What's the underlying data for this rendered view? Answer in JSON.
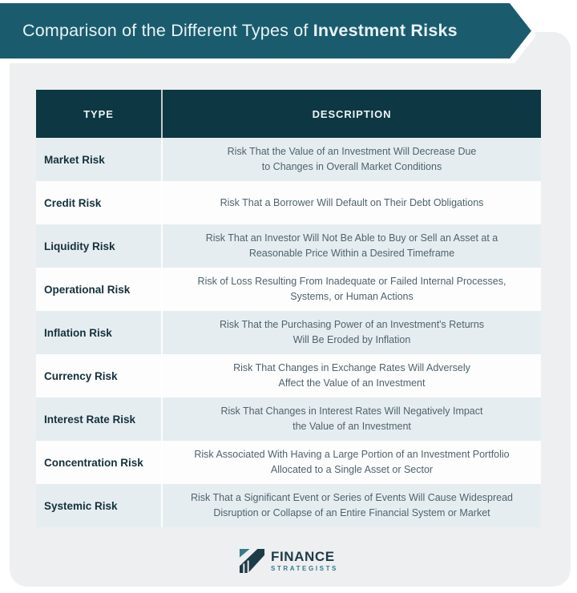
{
  "banner": {
    "title_prefix": "Comparison of the Different Types of ",
    "title_emphasis": "Investment Risks"
  },
  "chart_data": {
    "type": "table",
    "title": "Comparison of the Different Types of Investment Risks",
    "columns": [
      "TYPE",
      "DESCRIPTION"
    ],
    "rows": [
      {
        "type": "Market Risk",
        "description": "Risk That the Value of an Investment Will Decrease Due\nto Changes in Overall Market Conditions"
      },
      {
        "type": "Credit Risk",
        "description": "Risk That a Borrower Will Default on Their Debt Obligations"
      },
      {
        "type": "Liquidity Risk",
        "description": "Risk That an Investor Will Not Be Able to Buy or Sell an Asset at a\nReasonable Price Within a Desired Timeframe"
      },
      {
        "type": "Operational Risk",
        "description": "Risk of Loss Resulting From Inadequate or Failed Internal Processes,\nSystems, or Human Actions"
      },
      {
        "type": "Inflation Risk",
        "description": "Risk That the Purchasing Power of an Investment's Returns\nWill Be Eroded by Inflation"
      },
      {
        "type": "Currency Risk",
        "description": "Risk That Changes in Exchange Rates Will Adversely\nAffect the Value of an Investment"
      },
      {
        "type": "Interest Rate Risk",
        "description": "Risk That Changes in Interest Rates Will Negatively Impact\nthe Value of an Investment"
      },
      {
        "type": "Concentration Risk",
        "description": "Risk Associated With Having a Large Portion of an Investment Portfolio\nAllocated to a Single Asset or Sector"
      },
      {
        "type": "Systemic Risk",
        "description": "Risk That a Significant Event or Series of Events Will Cause Widespread\nDisruption or Collapse of an Entire Financial System or Market"
      }
    ],
    "layout_hints": {
      "zebra_striping": true,
      "header_position": "top",
      "grid": "off"
    }
  },
  "footer": {
    "brand_primary": "FINANCE",
    "brand_secondary": "STRATEGISTS",
    "logo_icon": "growth-ramp-with-pillars"
  },
  "colors": {
    "page_bg": "#ffffff",
    "card_bg": "#eeeff1",
    "banner_teal": "#1a5c6d",
    "banner_text": "#e9f3f5",
    "header_dark": "#0d3843",
    "header_text": "#eef4f6",
    "divider": "#c2ccd0",
    "row_tint": "#e6edf0",
    "row_white": "#fdfdfd",
    "type_text": "#14313c",
    "desc_text": "#4e636e",
    "brand_dark": "#1d3b47",
    "brand_teal": "#347b8c"
  }
}
